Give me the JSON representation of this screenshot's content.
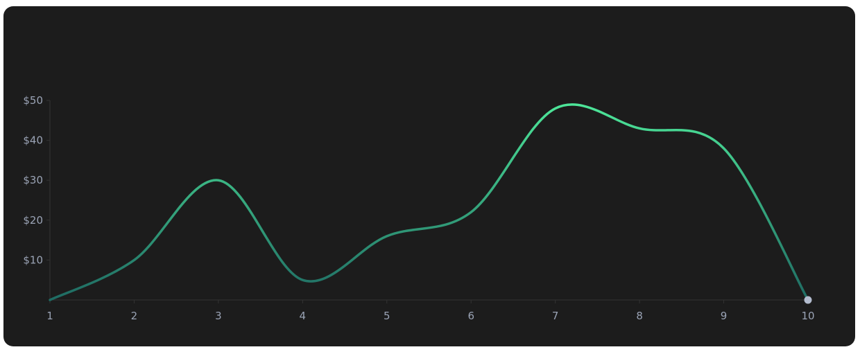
{
  "chart_data": {
    "type": "line",
    "x": [
      1,
      2,
      3,
      4,
      5,
      6,
      7,
      8,
      9,
      10
    ],
    "series": [
      {
        "values": [
          0,
          10,
          30,
          5,
          16,
          22,
          48,
          43,
          38,
          0
        ],
        "color_start": "#1f6b63",
        "color_end": "#4ee89a"
      }
    ],
    "xlabel": "",
    "ylabel": "",
    "ylim": [
      0,
      50
    ],
    "yticks": [
      10,
      20,
      30,
      40,
      50
    ],
    "ytick_labels": [
      "$10",
      "$20",
      "$30",
      "$40",
      "$50"
    ],
    "xtick_labels": [
      "1",
      "2",
      "3",
      "4",
      "5",
      "6",
      "7",
      "8",
      "9",
      "10"
    ],
    "grid": false,
    "end_marker_color": "#b3bccf",
    "axis_color": "#333333",
    "background": "#1c1c1c"
  }
}
